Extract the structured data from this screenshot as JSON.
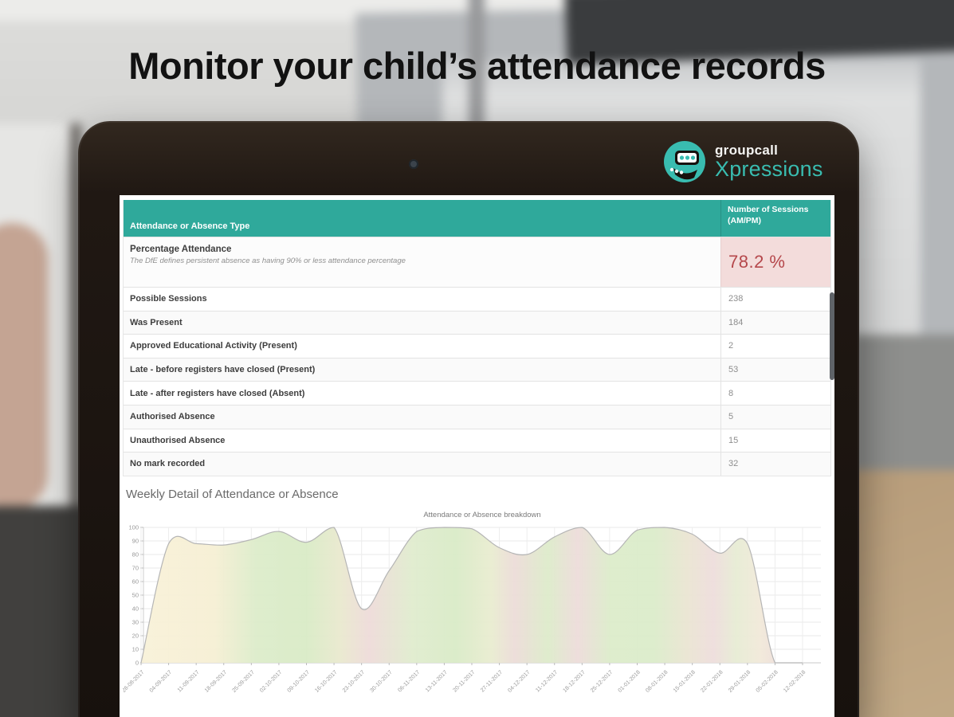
{
  "headline": "Monitor your child’s attendance records",
  "brand": {
    "name": "groupcall",
    "product": "Xpressions",
    "teal": "#39bcb0"
  },
  "table": {
    "header": {
      "col1": "Attendance or Absence Type",
      "col2": "Number of Sessions (AM/PM)"
    },
    "percentage_row": {
      "label": "Percentage Attendance",
      "note": "The DfE defines persistent absence as having 90% or less attendance percentage",
      "value": "78.2 %",
      "value_color": "#b5474b",
      "cell_color": "#f3dcdb"
    },
    "rows": [
      {
        "label": "Possible Sessions",
        "value": "238"
      },
      {
        "label": "Was Present",
        "value": "184"
      },
      {
        "label": "Approved Educational Activity (Present)",
        "value": "2"
      },
      {
        "label": "Late - before registers have closed (Present)",
        "value": "53"
      },
      {
        "label": "Late - after registers have closed (Absent)",
        "value": "8"
      },
      {
        "label": "Authorised Absence",
        "value": "5"
      },
      {
        "label": "Unauthorised Absence",
        "value": "15"
      },
      {
        "label": "No mark recorded",
        "value": "32"
      }
    ],
    "header_color": "#2fa99b"
  },
  "section_heading": "Weekly Detail of Attendance or Absence",
  "chart_data": {
    "type": "area",
    "title": "Attendance or Absence breakdown",
    "x": [
      "28-08-2017",
      "04-09-2017",
      "11-09-2017",
      "18-09-2017",
      "25-09-2017",
      "02-10-2017",
      "09-10-2017",
      "16-10-2017",
      "23-10-2017",
      "30-10-2017",
      "06-11-2017",
      "13-11-2017",
      "20-11-2017",
      "27-11-2017",
      "04-12-2017",
      "11-12-2017",
      "18-12-2017",
      "25-12-2017",
      "01-01-2018",
      "08-01-2018",
      "15-01-2018",
      "22-01-2018",
      "29-01-2018",
      "05-02-2018",
      "12-02-2018"
    ],
    "values": [
      0,
      88,
      88,
      87,
      91,
      97,
      89,
      100,
      40,
      68,
      97,
      100,
      99,
      85,
      80,
      93,
      100,
      80,
      98,
      100,
      95,
      81,
      88,
      0,
      0
    ],
    "xlabel": "",
    "ylabel": "",
    "ylim": [
      0,
      100
    ],
    "ytick_step": 10,
    "grid": true,
    "legend": "none",
    "line_color": "#b5b5b5",
    "fill_bands": [
      {
        "o": 0.0,
        "c": "#f8f1d8"
      },
      {
        "o": 0.11,
        "c": "#f6efd4"
      },
      {
        "o": 0.175,
        "c": "#dcecca"
      },
      {
        "o": 0.25,
        "c": "#d9ebc6"
      },
      {
        "o": 0.3,
        "c": "#e9e9ce"
      },
      {
        "o": 0.345,
        "c": "#eedbd9"
      },
      {
        "o": 0.41,
        "c": "#e0ecce"
      },
      {
        "o": 0.475,
        "c": "#d9ebc7"
      },
      {
        "o": 0.53,
        "c": "#e9ecd0"
      },
      {
        "o": 0.565,
        "c": "#ecdcd8"
      },
      {
        "o": 0.615,
        "c": "#ddebca"
      },
      {
        "o": 0.66,
        "c": "#eddcda"
      },
      {
        "o": 0.71,
        "c": "#dcecca"
      },
      {
        "o": 0.775,
        "c": "#dbecca"
      },
      {
        "o": 0.825,
        "c": "#eae5d2"
      },
      {
        "o": 0.865,
        "c": "#eedddc"
      },
      {
        "o": 0.9,
        "c": "#e7ecd4"
      },
      {
        "o": 0.935,
        "c": "#f1e9d9"
      },
      {
        "o": 0.97,
        "c": "#eedcda"
      }
    ]
  }
}
